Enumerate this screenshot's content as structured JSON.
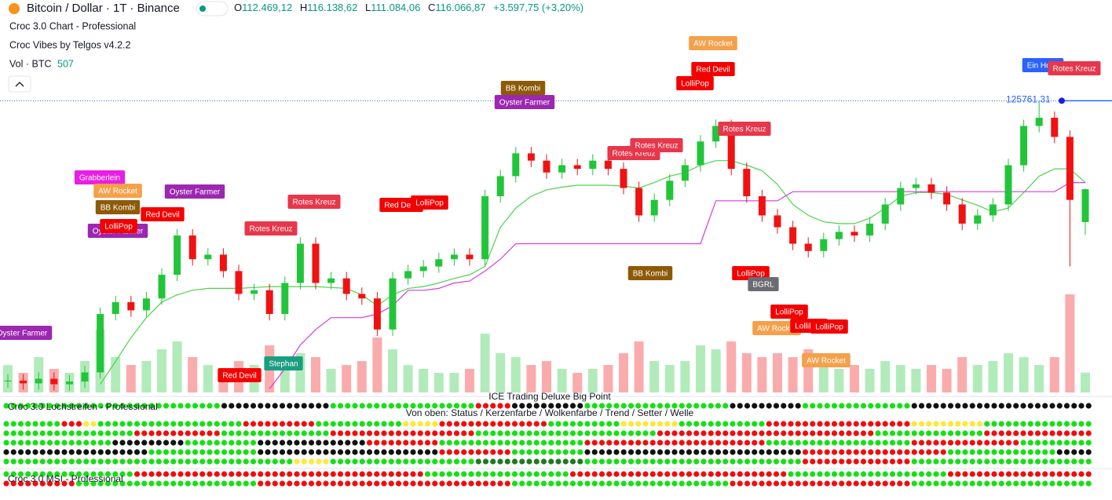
{
  "chart_data": {
    "type": "candlestick",
    "title": "Bitcoin / Dollar · 1T · Binance",
    "header": {
      "o": "O",
      "open": "112.469,12",
      "h": "H",
      "high": "116.138,62",
      "l": "L",
      "low": "111.084,06",
      "c": "C",
      "close": "116.066,87",
      "change": "+3.597,75 (+3,20%)"
    },
    "indicators": [
      "Croc 3.0 Chart - Professional",
      "Croc Vibes by Telgos v4.2.2"
    ],
    "volume_title": "Vol · BTC",
    "ylim": [
      93800,
      136800
    ],
    "up_color": "#22c53a",
    "down_color": "#f01212",
    "open": [
      95000,
      95100,
      94800,
      95300,
      94700,
      95000,
      96000,
      102400,
      103700,
      102800,
      104100,
      106700,
      111000,
      108400,
      108900,
      107100,
      104600,
      105000,
      102400,
      105800,
      110100,
      105800,
      106300,
      104600,
      104100,
      100700,
      106300,
      107100,
      107600,
      108400,
      108900,
      108400,
      115300,
      117500,
      120000,
      119200,
      117900,
      118700,
      118300,
      119200,
      118300,
      116200,
      113200,
      114900,
      117000,
      118700,
      121300,
      123000,
      118300,
      115300,
      113200,
      111900,
      110100,
      109300,
      110600,
      111400,
      111000,
      112300,
      114400,
      116200,
      116600,
      115700,
      114400,
      112300,
      113200,
      114400,
      118700,
      123000,
      123900,
      121800,
      112469.12
    ],
    "high": [
      95800,
      95800,
      96000,
      96000,
      95700,
      96700,
      103100,
      104400,
      104400,
      104800,
      107400,
      111700,
      111700,
      109600,
      109600,
      107800,
      105700,
      105700,
      106500,
      110800,
      110800,
      107000,
      107000,
      105300,
      104800,
      107000,
      107800,
      108300,
      109100,
      109600,
      109600,
      116000,
      118200,
      120700,
      120700,
      119900,
      119400,
      119400,
      119900,
      119900,
      119000,
      116900,
      115600,
      117700,
      119400,
      122000,
      123700,
      123700,
      119000,
      116000,
      113900,
      112600,
      110800,
      111300,
      112100,
      112100,
      113000,
      115100,
      116900,
      117300,
      117300,
      116400,
      115100,
      113900,
      115100,
      119400,
      123700,
      125700,
      124600,
      122500,
      116138.62
    ],
    "low": [
      94300,
      94100,
      94100,
      94000,
      94000,
      94300,
      95300,
      101700,
      102100,
      102100,
      103400,
      106000,
      107700,
      107700,
      106400,
      103900,
      103900,
      101700,
      101700,
      105100,
      105100,
      105100,
      103900,
      103400,
      100000,
      100000,
      105600,
      106400,
      106900,
      107700,
      107700,
      107700,
      114600,
      116800,
      118500,
      117200,
      117200,
      117600,
      117600,
      117600,
      115500,
      112500,
      112500,
      114200,
      116300,
      118000,
      120600,
      117600,
      114600,
      112500,
      111200,
      109400,
      108600,
      108600,
      109900,
      110300,
      110300,
      111600,
      113700,
      115500,
      115000,
      113700,
      111600,
      111600,
      112500,
      113700,
      118000,
      122300,
      121100,
      107600,
      111084.06
    ],
    "close": [
      95100,
      94800,
      95300,
      94700,
      95000,
      96000,
      102400,
      103700,
      102800,
      104100,
      106700,
      111000,
      108400,
      108900,
      107100,
      104600,
      105000,
      102400,
      105800,
      110100,
      105800,
      106300,
      104600,
      104100,
      100700,
      106300,
      107100,
      107600,
      108400,
      108900,
      108400,
      115300,
      117500,
      120000,
      119200,
      117900,
      118700,
      118300,
      119200,
      118300,
      116200,
      113200,
      114900,
      117000,
      118700,
      121300,
      123000,
      118300,
      115300,
      113200,
      111900,
      110100,
      109300,
      110600,
      111400,
      111000,
      112300,
      114400,
      116200,
      116600,
      115700,
      114400,
      112300,
      113200,
      114400,
      118700,
      123000,
      123900,
      121800,
      114900,
      116066.87
    ],
    "volume": {
      "ylim": [
        0,
        10000
      ],
      "values": [
        700,
        500,
        900,
        600,
        500,
        800,
        1600,
        900,
        700,
        800,
        1100,
        1300,
        900,
        700,
        600,
        800,
        700,
        1200,
        900,
        1000,
        900,
        600,
        700,
        800,
        1400,
        1100,
        700,
        600,
        500,
        500,
        600,
        1500,
        1000,
        900,
        700,
        800,
        600,
        500,
        600,
        700,
        1000,
        1300,
        800,
        700,
        800,
        1200,
        1100,
        1300,
        1000,
        900,
        1000,
        900,
        1100,
        800,
        600,
        700,
        600,
        800,
        700,
        600,
        700,
        600,
        900,
        700,
        800,
        1000,
        900,
        700,
        900,
        2500,
        507
      ]
    },
    "lines": [
      {
        "color": "#4cd44c",
        "values": [
          null,
          null,
          null,
          null,
          null,
          null,
          94700,
          97200,
          99800,
          102000,
          103700,
          104500,
          105000,
          105200,
          105200,
          105200,
          105300,
          105400,
          105400,
          105400,
          105400,
          105300,
          105200,
          104500,
          103300,
          104500,
          105200,
          105400,
          105800,
          106300,
          106700,
          107600,
          111900,
          114000,
          115300,
          116000,
          116300,
          116500,
          116500,
          116500,
          116400,
          116200,
          116800,
          117500,
          117900,
          118700,
          119200,
          119200,
          118700,
          118100,
          116600,
          114400,
          113200,
          112500,
          112300,
          112300,
          112900,
          114000,
          115300,
          115700,
          115700,
          115500,
          114900,
          114300,
          113600,
          114000,
          115700,
          117500,
          118300,
          118300,
          116800
        ]
      },
      {
        "color": "#d63be0",
        "values": [
          null,
          null,
          null,
          null,
          null,
          null,
          null,
          null,
          null,
          null,
          null,
          null,
          null,
          null,
          null,
          null,
          null,
          94200,
          96400,
          99000,
          100700,
          102000,
          102000,
          102000,
          102400,
          103300,
          105000,
          105000,
          105200,
          105800,
          106000,
          107100,
          108400,
          110100,
          110100,
          110100,
          110100,
          110100,
          110100,
          110100,
          110100,
          110100,
          110100,
          110100,
          110100,
          110100,
          114800,
          114800,
          114800,
          114800,
          114800,
          115800,
          115800,
          115800,
          115800,
          115800,
          115800,
          115800,
          115800,
          115800,
          115800,
          115800,
          115800,
          115800,
          115800,
          115800,
          115800,
          115800,
          115800,
          116800,
          116800
        ]
      }
    ],
    "price_line": {
      "value": 125761.31,
      "label": "125761.31",
      "color": "#2962ff"
    },
    "annotations": [
      {
        "text": "Oyster Farmer",
        "color": "#9c27b0"
      },
      {
        "text": "Grabberlein",
        "color": "#e91ee3"
      },
      {
        "text": "AW Rocket",
        "color": "#f5a04a"
      },
      {
        "text": "BB Kombi",
        "color": "#8d5a08"
      },
      {
        "text": "Oyster Farmer",
        "color": "#9c27b0"
      },
      {
        "text": "LolliPop",
        "color": "#f50000"
      },
      {
        "text": "Red Devil",
        "color": "#f50000"
      },
      {
        "text": "Oyster Farmer",
        "color": "#9c27b0"
      },
      {
        "text": "Rotes Kreuz",
        "color": "#e8364a"
      },
      {
        "text": "Rotes Kreuz",
        "color": "#e8364a"
      },
      {
        "text": "Red Devil",
        "color": "#f50000"
      },
      {
        "text": "LolliPop",
        "color": "#f50000"
      },
      {
        "text": "BB Kombi",
        "color": "#8d5a08"
      },
      {
        "text": "Oyster Farmer",
        "color": "#9c27b0"
      },
      {
        "text": "Rotes Kreuz",
        "color": "#e8364a"
      },
      {
        "text": "Rotes Kreuz",
        "color": "#e8364a"
      },
      {
        "text": "AW Rocket",
        "color": "#f5a04a"
      },
      {
        "text": "Red Devil",
        "color": "#f50000"
      },
      {
        "text": "LolliPop",
        "color": "#f50000"
      },
      {
        "text": "Rotes Kreuz",
        "color": "#e8364a"
      },
      {
        "text": "BB Kombi",
        "color": "#8d5a08"
      },
      {
        "text": "LolliPop",
        "color": "#f50000"
      },
      {
        "text": "BGRL",
        "color": "#6b6b73"
      },
      {
        "text": "AW Rocket",
        "color": "#f5a04a"
      },
      {
        "text": "LolliPop",
        "color": "#f50000"
      },
      {
        "text": "LolliPop",
        "color": "#f50000"
      },
      {
        "text": "LolliPop",
        "color": "#f50000"
      },
      {
        "text": "AW Rocket",
        "color": "#f5a04a"
      },
      {
        "text": "Stephan",
        "color": "#1b9e80"
      },
      {
        "text": "Red Devil",
        "color": "#f50000"
      },
      {
        "text": "Ein Hoch",
        "color": "#2962ff"
      },
      {
        "text": "Rotes Kreuz",
        "color": "#e8364a"
      }
    ],
    "panels": {
      "big_point": "ICE Trading Deluxe Big Point",
      "lochstreifen": "Croc 3.0 Lochstreifen - Professional",
      "legend": "Von oben: Status / Kerzenfarbe / Wolkenfarbe / Trend / Setter / Welle",
      "msi": "Croc 3.0 MSI - Professional"
    },
    "dot_colors": {
      "g": "#14e014",
      "r": "#f20c0c",
      "k": "#111111",
      "y": "#ffe83a",
      "d": "#1f7a1f"
    },
    "dot_rows": [
      [
        [
          "g",
          30
        ],
        [
          "k",
          15
        ],
        [
          "g",
          20
        ],
        [
          "r",
          5
        ],
        [
          "k",
          10
        ],
        [
          "g",
          20
        ],
        [
          "k",
          10
        ],
        [
          "g",
          15
        ],
        [
          "k",
          25
        ]
      ],
      [
        [
          "g",
          8
        ],
        [
          "r",
          3
        ],
        [
          "y",
          2
        ],
        [
          "g",
          20
        ],
        [
          "r",
          10
        ],
        [
          "g",
          12
        ],
        [
          "y",
          5
        ],
        [
          "r",
          15
        ],
        [
          "g",
          10
        ],
        [
          "y",
          8
        ],
        [
          "g",
          12
        ],
        [
          "r",
          20
        ],
        [
          "y",
          10
        ],
        [
          "g",
          15
        ]
      ],
      [
        [
          "g",
          18
        ],
        [
          "r",
          12
        ],
        [
          "g",
          15
        ],
        [
          "r",
          20
        ],
        [
          "g",
          25
        ],
        [
          "r",
          30
        ],
        [
          "g",
          15
        ],
        [
          "r",
          15
        ]
      ],
      [
        [
          "g",
          15
        ],
        [
          "k",
          10
        ],
        [
          "g",
          10
        ],
        [
          "k",
          15
        ],
        [
          "r",
          10
        ],
        [
          "g",
          20
        ],
        [
          "r",
          25
        ],
        [
          "g",
          20
        ],
        [
          "r",
          15
        ],
        [
          "g",
          10
        ]
      ],
      [
        [
          "k",
          20
        ],
        [
          "g",
          15
        ],
        [
          "k",
          25
        ],
        [
          "r",
          10
        ],
        [
          "g",
          10
        ],
        [
          "k",
          30
        ],
        [
          "r",
          20
        ],
        [
          "g",
          15
        ],
        [
          "k",
          5
        ]
      ],
      [
        [
          "g",
          40
        ],
        [
          "y",
          5
        ],
        [
          "g",
          20
        ],
        [
          "d",
          15
        ],
        [
          "g",
          30
        ],
        [
          "r",
          15
        ],
        [
          "g",
          25
        ]
      ],
      [
        [
          "g",
          18
        ],
        [
          "r",
          40
        ],
        [
          "g",
          20
        ],
        [
          "r",
          30
        ],
        [
          "g",
          22
        ],
        [
          "r",
          20
        ]
      ],
      [
        [
          "r",
          10
        ],
        [
          "g",
          25
        ],
        [
          "r",
          35
        ],
        [
          "g",
          30
        ],
        [
          "r",
          25
        ],
        [
          "g",
          25
        ]
      ]
    ]
  }
}
